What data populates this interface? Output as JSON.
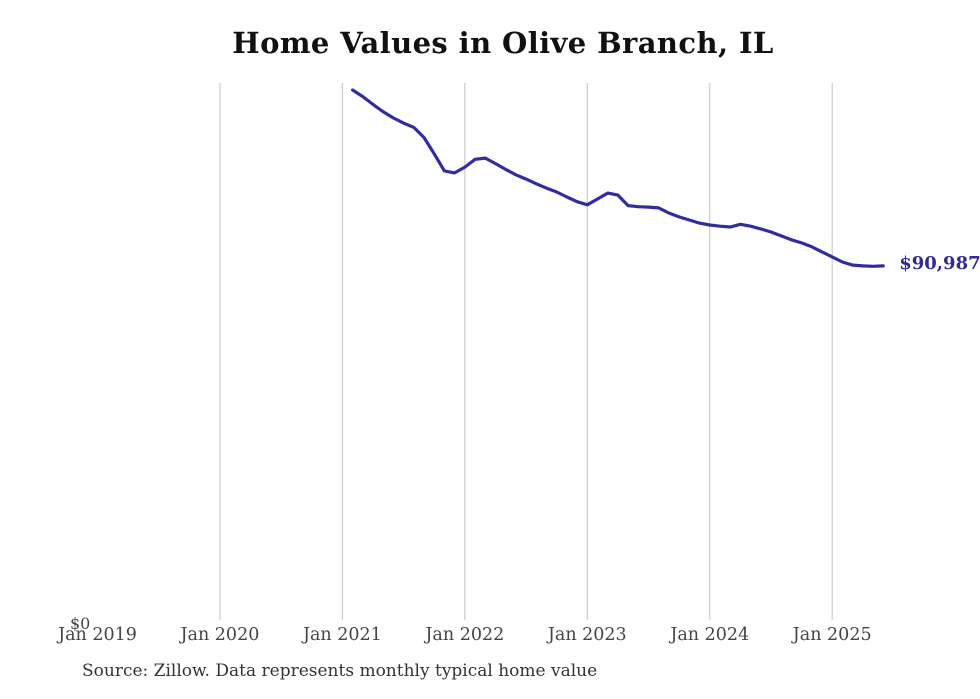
{
  "page": {
    "title": "Home Values in Olive Branch, IL",
    "source_note": "Source: Zillow. Data represents monthly typical home value"
  },
  "labels": {
    "y_zero": "$0",
    "latest_value": "$90,987"
  },
  "colors": {
    "background": "#ffffff",
    "line": "#312da0",
    "latest_value_label": "#2e2a96",
    "gridline": "#cccccc",
    "title_text": "#111111",
    "tick_text": "#454545",
    "source_text": "#333333"
  },
  "chart_data": {
    "type": "line",
    "title": "Home Values in Olive Branch, IL",
    "xlabel": "",
    "ylabel": "",
    "ylim": [
      0,
      138000
    ],
    "grid": "vertical",
    "legend": "none",
    "last_value": 90987,
    "last_point_label": "$90,987",
    "x_ticks": [
      {
        "label": "Jan 2019",
        "year": 2019,
        "gridline": false
      },
      {
        "label": "Jan 2020",
        "year": 2020,
        "gridline": true
      },
      {
        "label": "Jan 2021",
        "year": 2021,
        "gridline": true
      },
      {
        "label": "Jan 2022",
        "year": 2022,
        "gridline": true
      },
      {
        "label": "Jan 2023",
        "year": 2023,
        "gridline": true
      },
      {
        "label": "Jan 2024",
        "year": 2024,
        "gridline": true
      },
      {
        "label": "Jan 2025",
        "year": 2025,
        "gridline": true
      }
    ],
    "y_ticks": [
      {
        "label": "$0",
        "value": 0
      }
    ],
    "x": [
      "2021-02",
      "2021-03",
      "2021-04",
      "2021-05",
      "2021-06",
      "2021-07",
      "2021-08",
      "2021-09",
      "2021-10",
      "2021-11",
      "2021-12",
      "2022-01",
      "2022-02",
      "2022-03",
      "2022-04",
      "2022-05",
      "2022-06",
      "2022-07",
      "2022-08",
      "2022-09",
      "2022-10",
      "2022-11",
      "2022-12",
      "2023-01",
      "2023-02",
      "2023-03",
      "2023-04",
      "2023-05",
      "2023-06",
      "2023-07",
      "2023-08",
      "2023-09",
      "2023-10",
      "2023-11",
      "2023-12",
      "2024-01",
      "2024-02",
      "2024-03",
      "2024-04",
      "2024-05",
      "2024-06",
      "2024-07",
      "2024-08",
      "2024-09",
      "2024-10",
      "2024-11",
      "2024-12",
      "2025-01",
      "2025-02",
      "2025-03",
      "2025-04",
      "2025-05",
      "2025-06"
    ],
    "values": [
      136200,
      134500,
      132500,
      130600,
      129000,
      127700,
      126600,
      124000,
      119800,
      115400,
      114900,
      116400,
      118400,
      118700,
      117300,
      115800,
      114400,
      113300,
      112100,
      111000,
      110000,
      108700,
      107500,
      106700,
      108200,
      109700,
      109200,
      106500,
      106200,
      106100,
      105900,
      104600,
      103600,
      102800,
      102000,
      101500,
      101200,
      101000,
      101700,
      101200,
      100500,
      99700,
      98700,
      97700,
      96900,
      95900,
      94600,
      93300,
      92000,
      91200,
      91000,
      90900,
      90987
    ]
  }
}
